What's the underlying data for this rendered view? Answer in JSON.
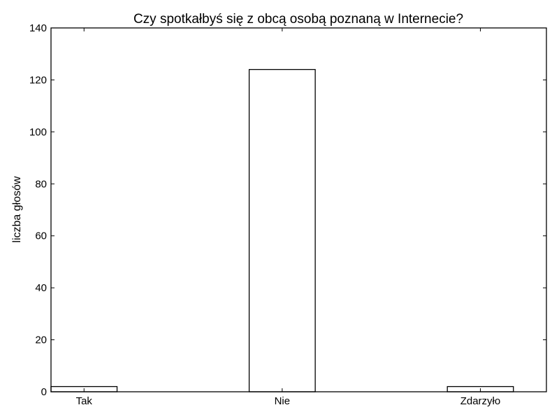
{
  "chart_data": {
    "type": "bar",
    "title": "Czy spotkałbyś się z obcą osobą poznaną w Internecie?",
    "xlabel": "",
    "ylabel": "liczba głosów",
    "categories": [
      "Tak",
      "Nie",
      "Zdarzyło"
    ],
    "values": [
      2,
      124,
      2
    ],
    "ylim": [
      0,
      140
    ],
    "yticks": [
      0,
      20,
      40,
      60,
      80,
      100,
      120,
      140
    ],
    "grid": false,
    "legend": "none",
    "bar_fill": "#ffffff",
    "bar_edge": "#000000"
  }
}
